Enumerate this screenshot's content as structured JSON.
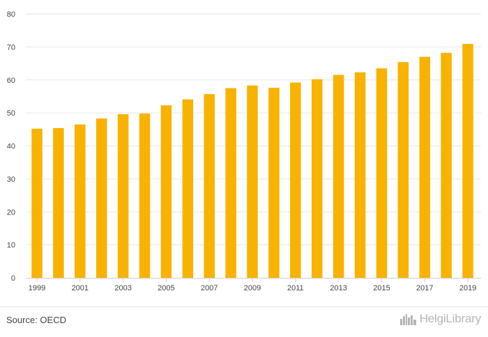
{
  "chart_data": {
    "type": "bar",
    "categories": [
      "1999",
      "2000",
      "2001",
      "2002",
      "2003",
      "2004",
      "2005",
      "2006",
      "2007",
      "2008",
      "2009",
      "2010",
      "2011",
      "2012",
      "2013",
      "2014",
      "2015",
      "2016",
      "2017",
      "2018",
      "2019"
    ],
    "values": [
      45.2,
      45.4,
      46.5,
      48.3,
      49.6,
      49.8,
      52.3,
      54.1,
      55.7,
      57.5,
      58.3,
      57.6,
      59.2,
      60.2,
      61.5,
      62.3,
      63.5,
      65.4,
      67.0,
      68.2,
      70.9
    ],
    "x_tick_labels": [
      "1999",
      "2001",
      "2003",
      "2005",
      "2007",
      "2009",
      "2011",
      "2013",
      "2015",
      "2017",
      "2019"
    ],
    "y_ticks": [
      0,
      10,
      20,
      30,
      40,
      50,
      60,
      70,
      80
    ],
    "ylim": [
      0,
      80
    ],
    "title": "",
    "xlabel": "",
    "ylabel": "",
    "grid": true,
    "bar_color": "#f9b200",
    "grid_color": "#e6e6e6"
  },
  "footer": {
    "source": "Source: OECD",
    "brand": "HelgiLibrary"
  },
  "brand_icon": "city-skyline-icon"
}
